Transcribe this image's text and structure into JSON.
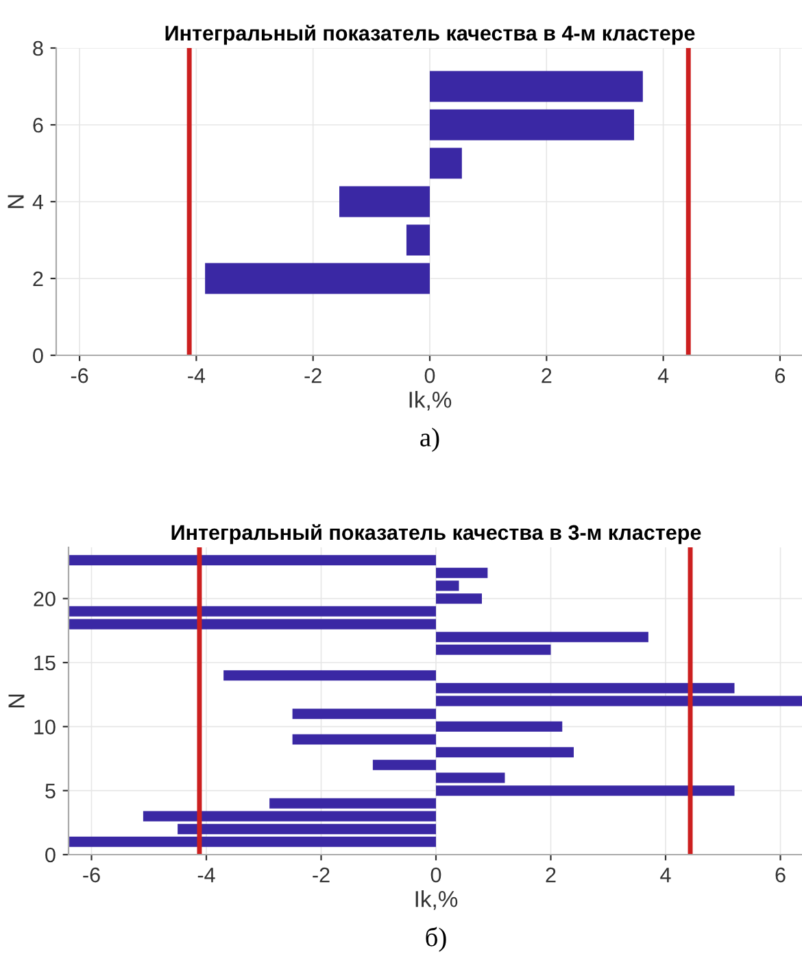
{
  "chart_data": [
    {
      "type": "bar",
      "orientation": "horizontal",
      "title": "Интегральный показатель качества в 4-м кластере",
      "xlabel": "Ik,%",
      "ylabel": "N",
      "x": [
        1,
        2,
        3,
        4,
        5,
        6,
        7
      ],
      "values": [
        0,
        -3.85,
        -0.4,
        -1.55,
        0.55,
        3.5,
        3.65
      ],
      "color": "#3a28a4",
      "xlim": [
        -6.4,
        6.4
      ],
      "xticks": [
        -6,
        -4,
        -2,
        0,
        2,
        4,
        6
      ],
      "ylim": [
        0,
        8
      ],
      "yticks": [
        0,
        2,
        4,
        6,
        8
      ],
      "grid": true,
      "ref_lines": [
        {
          "axis": "x",
          "value": -4.12,
          "color": "#cc1f1f"
        },
        {
          "axis": "x",
          "value": 4.43,
          "color": "#cc1f1f"
        }
      ],
      "annotations": [
        "а)"
      ]
    },
    {
      "type": "bar",
      "orientation": "horizontal",
      "title": "Интегральный показатель качества в 3-м кластере",
      "xlabel": "Ik,%",
      "ylabel": "N",
      "x": [
        1,
        2,
        3,
        4,
        5,
        6,
        7,
        8,
        9,
        10,
        11,
        12,
        13,
        14,
        15,
        16,
        17,
        18,
        19,
        20,
        21,
        22,
        23
      ],
      "values": [
        -6.4,
        -4.5,
        -5.1,
        -2.9,
        5.2,
        1.2,
        -1.1,
        2.4,
        -2.5,
        2.2,
        -2.5,
        6.4,
        5.2,
        -3.7,
        0,
        2.0,
        3.7,
        -6.4,
        -6.4,
        0.8,
        0.4,
        0.9,
        -6.4
      ],
      "color": "#3a28a4",
      "xlim": [
        -6.4,
        6.4
      ],
      "xticks": [
        -6,
        -4,
        -2,
        0,
        2,
        4,
        6
      ],
      "ylim": [
        0,
        24
      ],
      "yticks": [
        0,
        5,
        10,
        15,
        20
      ],
      "grid": true,
      "ref_lines": [
        {
          "axis": "x",
          "value": -4.12,
          "color": "#cc1f1f"
        },
        {
          "axis": "x",
          "value": 4.43,
          "color": "#cc1f1f"
        }
      ],
      "annotations": [
        "б)"
      ]
    }
  ]
}
